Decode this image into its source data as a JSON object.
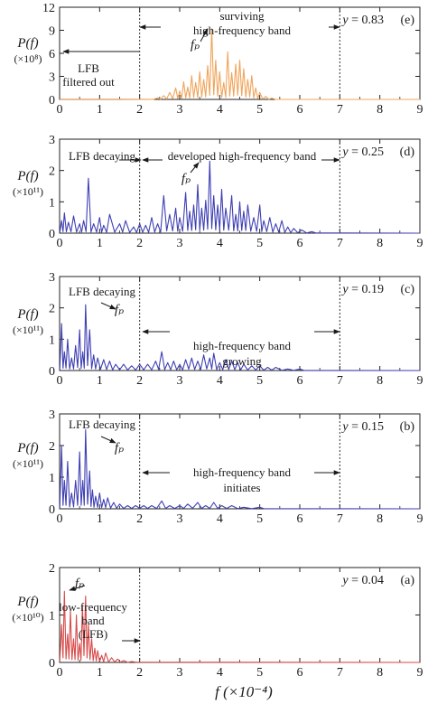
{
  "chart_data": [
    {
      "id": "e",
      "type": "line",
      "panel_label": "(e)",
      "y_annotation": "y = 0.83",
      "color": "#f0a45a",
      "xlim": [
        0,
        9
      ],
      "ylim": [
        0,
        12
      ],
      "xticks": [
        0,
        1,
        2,
        3,
        4,
        5,
        6,
        7,
        8,
        9
      ],
      "yticks": [
        0,
        3,
        6,
        9,
        12
      ],
      "ylabel": "P(f)",
      "ylabel_multiplier": "(×10⁸)",
      "vlines": [
        2,
        7
      ],
      "texts": [
        "LFB",
        "filtered out",
        "surviving",
        "high-frequency band",
        "fₚ"
      ],
      "peak": {
        "x": 3.8,
        "y": 9.2
      },
      "peaks": [
        [
          2.45,
          0.2
        ],
        [
          2.6,
          0.5
        ],
        [
          2.75,
          0.9
        ],
        [
          2.9,
          1.5
        ],
        [
          3.0,
          1.1
        ],
        [
          3.1,
          2.3
        ],
        [
          3.2,
          1.6
        ],
        [
          3.3,
          3.1
        ],
        [
          3.4,
          2.2
        ],
        [
          3.5,
          3.6
        ],
        [
          3.6,
          2.6
        ],
        [
          3.7,
          4.4
        ],
        [
          3.8,
          9.2
        ],
        [
          3.9,
          5.1
        ],
        [
          4.0,
          3.6
        ],
        [
          4.1,
          2.2
        ],
        [
          4.2,
          6.2
        ],
        [
          4.3,
          3.5
        ],
        [
          4.4,
          4.6
        ],
        [
          4.5,
          5.1
        ],
        [
          4.6,
          4.0
        ],
        [
          4.7,
          2.6
        ],
        [
          4.8,
          3.1
        ],
        [
          4.9,
          1.5
        ],
        [
          5.0,
          0.9
        ],
        [
          5.15,
          0.4
        ],
        [
          5.3,
          0.15
        ]
      ]
    },
    {
      "id": "d",
      "type": "line",
      "panel_label": "(d)",
      "y_annotation": "y = 0.25",
      "color": "#3f3fb5",
      "xlim": [
        0,
        9
      ],
      "ylim": [
        0,
        3
      ],
      "xticks": [
        0,
        1,
        2,
        3,
        4,
        5,
        6,
        7,
        8,
        9
      ],
      "yticks": [
        0,
        1,
        2,
        3
      ],
      "ylabel": "P(f)",
      "ylabel_multiplier": "(×10¹¹)",
      "vlines": [
        2,
        7
      ],
      "texts": [
        "LFB decaying",
        "developed high-frequency band",
        "fₚ"
      ],
      "peak": {
        "x": 3.75,
        "y": 2.3
      },
      "peaks": [
        [
          0.05,
          0.4
        ],
        [
          0.12,
          0.65
        ],
        [
          0.22,
          0.35
        ],
        [
          0.35,
          0.55
        ],
        [
          0.5,
          0.3
        ],
        [
          0.6,
          0.4
        ],
        [
          0.72,
          1.75
        ],
        [
          0.85,
          0.3
        ],
        [
          1.0,
          0.5
        ],
        [
          1.1,
          0.25
        ],
        [
          1.25,
          0.6
        ],
        [
          1.5,
          0.3
        ],
        [
          1.65,
          0.4
        ],
        [
          1.85,
          0.2
        ],
        [
          2.0,
          0.3
        ],
        [
          2.15,
          0.25
        ],
        [
          2.3,
          0.5
        ],
        [
          2.45,
          0.3
        ],
        [
          2.6,
          1.2
        ],
        [
          2.75,
          0.6
        ],
        [
          2.9,
          0.8
        ],
        [
          3.0,
          0.5
        ],
        [
          3.15,
          1.3
        ],
        [
          3.25,
          0.7
        ],
        [
          3.35,
          0.9
        ],
        [
          3.45,
          1.55
        ],
        [
          3.55,
          0.8
        ],
        [
          3.65,
          1.05
        ],
        [
          3.75,
          2.3
        ],
        [
          3.85,
          1.2
        ],
        [
          3.95,
          0.9
        ],
        [
          4.05,
          1.4
        ],
        [
          4.15,
          0.8
        ],
        [
          4.3,
          1.2
        ],
        [
          4.4,
          0.6
        ],
        [
          4.5,
          1.0
        ],
        [
          4.6,
          0.7
        ],
        [
          4.7,
          0.9
        ],
        [
          4.85,
          0.5
        ],
        [
          5.0,
          0.9
        ],
        [
          5.1,
          0.4
        ],
        [
          5.25,
          0.5
        ],
        [
          5.4,
          0.3
        ],
        [
          5.55,
          0.4
        ],
        [
          5.7,
          0.2
        ],
        [
          5.85,
          0.15
        ],
        [
          6.05,
          0.1
        ],
        [
          6.3,
          0.05
        ]
      ]
    },
    {
      "id": "c",
      "type": "line",
      "panel_label": "(c)",
      "y_annotation": "y = 0.19",
      "color": "#3f3fb5",
      "xlim": [
        0,
        9
      ],
      "ylim": [
        0,
        3
      ],
      "xticks": [
        0,
        1,
        2,
        3,
        4,
        5,
        6,
        7,
        8,
        9
      ],
      "yticks": [
        0,
        1,
        2,
        3
      ],
      "ylabel": "P(f)",
      "ylabel_multiplier": "(×10¹¹)",
      "vlines": [
        2,
        7
      ],
      "texts": [
        "LFB decaying",
        "high-frequency band",
        "growing",
        "fₚ"
      ],
      "peak": {
        "x": 0.65,
        "y": 2.1
      },
      "peaks": [
        [
          0.05,
          1.5
        ],
        [
          0.12,
          0.6
        ],
        [
          0.2,
          1.0
        ],
        [
          0.3,
          0.4
        ],
        [
          0.4,
          0.8
        ],
        [
          0.5,
          1.3
        ],
        [
          0.58,
          0.6
        ],
        [
          0.65,
          2.1
        ],
        [
          0.75,
          1.3
        ],
        [
          0.85,
          0.5
        ],
        [
          0.95,
          0.4
        ],
        [
          1.1,
          0.35
        ],
        [
          1.25,
          0.3
        ],
        [
          1.4,
          0.2
        ],
        [
          1.6,
          0.2
        ],
        [
          1.8,
          0.15
        ],
        [
          2.0,
          0.2
        ],
        [
          2.2,
          0.2
        ],
        [
          2.4,
          0.3
        ],
        [
          2.55,
          0.6
        ],
        [
          2.7,
          0.25
        ],
        [
          2.85,
          0.3
        ],
        [
          3.0,
          0.2
        ],
        [
          3.15,
          0.35
        ],
        [
          3.3,
          0.4
        ],
        [
          3.45,
          0.3
        ],
        [
          3.6,
          0.5
        ],
        [
          3.75,
          0.4
        ],
        [
          3.85,
          0.55
        ],
        [
          4.0,
          0.25
        ],
        [
          4.15,
          0.35
        ],
        [
          4.3,
          0.3
        ],
        [
          4.45,
          0.25
        ],
        [
          4.6,
          0.2
        ],
        [
          4.8,
          0.15
        ],
        [
          5.0,
          0.15
        ],
        [
          5.2,
          0.1
        ],
        [
          5.4,
          0.1
        ],
        [
          5.7,
          0.05
        ],
        [
          6.0,
          0.05
        ]
      ]
    },
    {
      "id": "b",
      "type": "line",
      "panel_label": "(b)",
      "y_annotation": "y = 0.15",
      "color": "#3f3fb5",
      "xlim": [
        0,
        9
      ],
      "ylim": [
        0,
        3
      ],
      "xticks": [
        0,
        1,
        2,
        3,
        4,
        5,
        6,
        7,
        8,
        9
      ],
      "yticks": [
        0,
        1,
        2,
        3
      ],
      "ylabel": "P(f)",
      "ylabel_multiplier": "(×10¹¹)",
      "vlines": [
        2,
        7
      ],
      "texts": [
        "LFB decaying",
        "high-frequency band",
        "initiates",
        "fₚ"
      ],
      "peak": {
        "x": 0.65,
        "y": 2.5
      },
      "peaks": [
        [
          0.05,
          2.0
        ],
        [
          0.12,
          0.9
        ],
        [
          0.2,
          1.5
        ],
        [
          0.3,
          0.5
        ],
        [
          0.4,
          0.9
        ],
        [
          0.5,
          1.8
        ],
        [
          0.58,
          0.9
        ],
        [
          0.65,
          2.5
        ],
        [
          0.75,
          1.2
        ],
        [
          0.82,
          0.6
        ],
        [
          0.9,
          0.4
        ],
        [
          1.0,
          0.5
        ],
        [
          1.1,
          0.3
        ],
        [
          1.2,
          0.35
        ],
        [
          1.35,
          0.2
        ],
        [
          1.5,
          0.15
        ],
        [
          1.7,
          0.1
        ],
        [
          1.9,
          0.1
        ],
        [
          2.1,
          0.1
        ],
        [
          2.3,
          0.1
        ],
        [
          2.55,
          0.25
        ],
        [
          2.75,
          0.1
        ],
        [
          3.0,
          0.1
        ],
        [
          3.2,
          0.15
        ],
        [
          3.45,
          0.2
        ],
        [
          3.65,
          0.1
        ],
        [
          3.85,
          0.2
        ],
        [
          4.05,
          0.1
        ],
        [
          4.3,
          0.1
        ],
        [
          4.6,
          0.05
        ],
        [
          5.0,
          0.05
        ]
      ]
    },
    {
      "id": "a",
      "type": "line",
      "panel_label": "(a)",
      "y_annotation": "y = 0.04",
      "color": "#d94a4a",
      "xlim": [
        0,
        9
      ],
      "ylim": [
        0,
        2
      ],
      "xticks": [
        0,
        1,
        2,
        3,
        4,
        5,
        6,
        7,
        8,
        9
      ],
      "yticks": [
        0,
        1,
        2
      ],
      "ylabel": "P(f)",
      "ylabel_multiplier": "(×10¹⁰)",
      "xlabel": "f (×10⁻⁴)",
      "vlines": [
        2
      ],
      "texts": [
        "low-frequency",
        "band",
        "(LFB)",
        "fₚ"
      ],
      "peak": {
        "x": 0.12,
        "y": 1.5
      },
      "peaks": [
        [
          0.05,
          0.8
        ],
        [
          0.12,
          1.5
        ],
        [
          0.2,
          0.6
        ],
        [
          0.27,
          1.1
        ],
        [
          0.35,
          0.5
        ],
        [
          0.42,
          1.0
        ],
        [
          0.5,
          0.4
        ],
        [
          0.57,
          1.2
        ],
        [
          0.65,
          1.4
        ],
        [
          0.72,
          0.8
        ],
        [
          0.8,
          0.5
        ],
        [
          0.88,
          0.3
        ],
        [
          0.95,
          0.25
        ],
        [
          1.05,
          0.15
        ],
        [
          1.15,
          0.2
        ],
        [
          1.3,
          0.1
        ],
        [
          1.45,
          0.07
        ],
        [
          1.6,
          0.04
        ],
        [
          1.8,
          0.02
        ]
      ]
    }
  ]
}
